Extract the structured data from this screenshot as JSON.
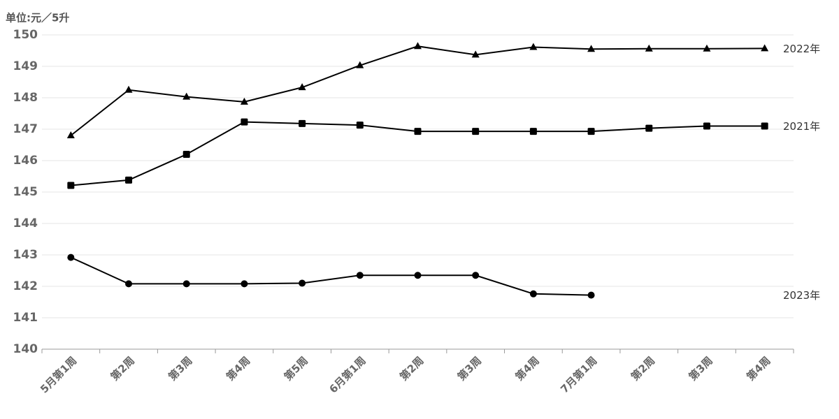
{
  "chart_data": {
    "type": "line",
    "y_label": "单位:元／5升",
    "categories": [
      "5月第1周",
      "第2周",
      "第3周",
      "第4周",
      "第5周",
      "6月第1周",
      "第2周",
      "第3周",
      "第4周",
      "7月第1周",
      "第2周",
      "第3周",
      "第4周"
    ],
    "series": [
      {
        "name": "2022年",
        "color": "#000000",
        "marker": "triangle",
        "values": [
          146.8,
          148.25,
          148.03,
          147.87,
          148.33,
          149.03,
          149.64,
          149.37,
          149.61,
          149.55,
          149.56,
          149.56,
          149.57
        ]
      },
      {
        "name": "2021年",
        "color": "#000000",
        "marker": "square",
        "values": [
          145.21,
          145.38,
          146.2,
          147.23,
          147.18,
          147.13,
          146.93,
          146.93,
          146.93,
          146.93,
          147.03,
          147.1,
          147.1
        ]
      },
      {
        "name": "2023年",
        "color": "#000000",
        "marker": "circle",
        "values": [
          142.92,
          142.08,
          142.08,
          142.08,
          142.1,
          142.35,
          142.35,
          142.35,
          141.76,
          141.72,
          null,
          null,
          null
        ]
      }
    ],
    "ylim": [
      140,
      150
    ],
    "yticks": [
      140,
      141,
      142,
      143,
      144,
      145,
      146,
      147,
      148,
      149,
      150
    ],
    "grid": true
  }
}
